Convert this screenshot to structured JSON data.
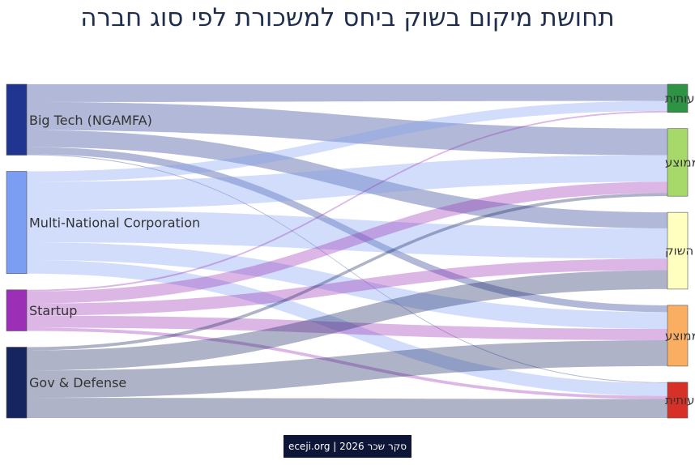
{
  "chart_data": {
    "type": "sankey",
    "title": "תחושת מיקום בשוק ביחס למשכורת לפי סוג חברה",
    "sources": [
      {
        "name": "Big Tech (NGAMFA)",
        "color": "#1f3590"
      },
      {
        "name": "Multi-National Corporation",
        "color": "#7b9ef2"
      },
      {
        "name": "Startup",
        "color": "#9b2fb5"
      },
      {
        "name": "Gov & Defense",
        "color": "#16245f"
      }
    ],
    "targets": [
      {
        "name": "גבוהה משמעותית",
        "color": "#2e9444"
      },
      {
        "name": "מעל הממוצע",
        "color": "#a6d96a"
      },
      {
        "name": "תואמת את השוק",
        "color": "#ffffbf"
      },
      {
        "name": "מתחת לממוצע",
        "color": "#f9ae61"
      },
      {
        "name": "נמוכה משמעותית",
        "color": "#d73027"
      }
    ],
    "links": [
      {
        "source": "Big Tech (NGAMFA)",
        "target": "גבוהה משמעותית",
        "value": 22
      },
      {
        "source": "Big Tech (NGAMFA)",
        "target": "מעל הממוצע",
        "value": 35
      },
      {
        "source": "Big Tech (NGAMFA)",
        "target": "תואמת את השוק",
        "value": 21
      },
      {
        "source": "Big Tech (NGAMFA)",
        "target": "מתחת לממוצע",
        "value": 9
      },
      {
        "source": "Big Tech (NGAMFA)",
        "target": "נמוכה משמעותית",
        "value": 1
      },
      {
        "source": "Multi-National Corporation",
        "target": "גבוהה משמעותית",
        "value": 13
      },
      {
        "source": "Multi-National Corporation",
        "target": "מעל הממוצע",
        "value": 35
      },
      {
        "source": "Multi-National Corporation",
        "target": "תואמת את השוק",
        "value": 40
      },
      {
        "source": "Multi-National Corporation",
        "target": "מתחת לממוצע",
        "value": 22
      },
      {
        "source": "Multi-National Corporation",
        "target": "נמוכה משמעותית",
        "value": 17
      },
      {
        "source": "Startup",
        "target": "גבוהה משמעותית",
        "value": 2
      },
      {
        "source": "Startup",
        "target": "מעל הממוצע",
        "value": 15
      },
      {
        "source": "Startup",
        "target": "תואמת את השוק",
        "value": 15
      },
      {
        "source": "Startup",
        "target": "מתחת לממוצע",
        "value": 15
      },
      {
        "source": "Startup",
        "target": "נמוכה משמעותית",
        "value": 4
      },
      {
        "source": "Gov & Defense",
        "target": "מעל הממוצע",
        "value": 4
      },
      {
        "source": "Gov & Defense",
        "target": "תואמת את השוק",
        "value": 25
      },
      {
        "source": "Gov & Defense",
        "target": "מתחת לממוצע",
        "value": 34
      },
      {
        "source": "Gov & Defense",
        "target": "נמוכה משמעותית",
        "value": 25
      }
    ]
  },
  "footer": {
    "text": "eceji.org | 2026 סקר שכר"
  }
}
